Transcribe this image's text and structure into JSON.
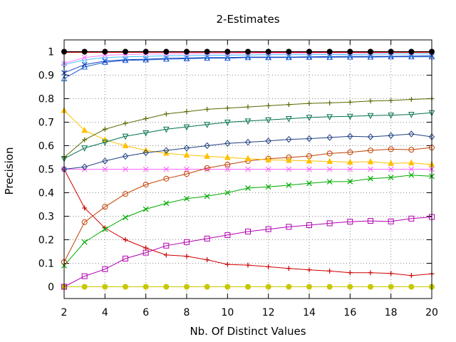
{
  "chart_data": {
    "type": "line",
    "title": "2-Estimates",
    "xlabel": "Nb. Of Distinct Values",
    "ylabel": "Precision",
    "xlim": [
      2,
      20
    ],
    "ylim": [
      -0.05,
      1.05
    ],
    "xticks": [
      "2",
      "4",
      "6",
      "8",
      "10",
      "12",
      "14",
      "16",
      "18",
      "20"
    ],
    "yticks": [
      "0",
      "0.1",
      "0.2",
      "0.3",
      "0.4",
      "0.5",
      "0.6",
      "0.7",
      "0.8",
      "0.9",
      "1"
    ],
    "grid": "dotted",
    "legend": "none",
    "x": [
      2,
      3,
      4,
      5,
      6,
      7,
      8,
      9,
      10,
      11,
      12,
      13,
      14,
      15,
      16,
      17,
      18,
      19,
      20
    ],
    "series": [
      {
        "color": "#c8c800",
        "marker": "filled-circle",
        "values": [
          0,
          0,
          0,
          0,
          0,
          0,
          0,
          0,
          0,
          0,
          0,
          0,
          0,
          0,
          0,
          0,
          0,
          0,
          0
        ]
      },
      {
        "color": "#b000b0",
        "marker": "open-square",
        "values": [
          0,
          0.045,
          0.075,
          0.12,
          0.145,
          0.175,
          0.19,
          0.205,
          0.22,
          0.235,
          0.245,
          0.255,
          0.262,
          0.27,
          0.277,
          0.28,
          0.278,
          0.29,
          0.297
        ]
      },
      {
        "color": "#cc0000",
        "marker": "plus",
        "values": [
          0.5,
          0.335,
          0.25,
          0.2,
          0.165,
          0.135,
          0.13,
          0.115,
          0.095,
          0.092,
          0.085,
          0.078,
          0.072,
          0.067,
          0.06,
          0.06,
          0.057,
          0.048,
          0.055
        ]
      },
      {
        "color": "#00aa00",
        "marker": "cross",
        "values": [
          0.09,
          0.19,
          0.245,
          0.295,
          0.33,
          0.355,
          0.375,
          0.385,
          0.4,
          0.42,
          0.425,
          0.432,
          0.44,
          0.447,
          0.448,
          0.46,
          0.465,
          0.475,
          0.47
        ]
      },
      {
        "color": "#ff66ff",
        "marker": "cross",
        "values": [
          0.5,
          0.5,
          0.5,
          0.5,
          0.5,
          0.5,
          0.5,
          0.5,
          0.5,
          0.5,
          0.5,
          0.5,
          0.5,
          0.5,
          0.5,
          0.5,
          0.5,
          0.5,
          0.5
        ]
      },
      {
        "color": "#c04000",
        "marker": "open-circle",
        "values": [
          0.105,
          0.275,
          0.34,
          0.395,
          0.435,
          0.46,
          0.48,
          0.505,
          0.52,
          0.535,
          0.545,
          0.55,
          0.556,
          0.567,
          0.572,
          0.58,
          0.585,
          0.583,
          0.592
        ]
      },
      {
        "color": "#ffc000",
        "marker": "filled-triangle",
        "values": [
          0.75,
          0.665,
          0.625,
          0.6,
          0.58,
          0.568,
          0.56,
          0.555,
          0.55,
          0.545,
          0.54,
          0.538,
          0.535,
          0.533,
          0.53,
          0.532,
          0.525,
          0.527,
          0.52
        ]
      },
      {
        "color": "#204080",
        "marker": "open-diamond",
        "values": [
          0.5,
          0.51,
          0.535,
          0.555,
          0.57,
          0.58,
          0.59,
          0.6,
          0.61,
          0.615,
          0.62,
          0.627,
          0.63,
          0.635,
          0.64,
          0.638,
          0.643,
          0.65,
          0.638
        ]
      },
      {
        "color": "#007050",
        "marker": "open-triangle-down",
        "values": [
          0.545,
          0.59,
          0.615,
          0.64,
          0.655,
          0.67,
          0.68,
          0.69,
          0.7,
          0.705,
          0.71,
          0.715,
          0.72,
          0.723,
          0.725,
          0.728,
          0.73,
          0.733,
          0.74
        ]
      },
      {
        "color": "#556b00",
        "marker": "plus",
        "values": [
          0.55,
          0.625,
          0.67,
          0.695,
          0.715,
          0.735,
          0.745,
          0.755,
          0.76,
          0.765,
          0.77,
          0.775,
          0.78,
          0.782,
          0.785,
          0.79,
          0.792,
          0.797,
          0.8
        ]
      },
      {
        "color": "#2060d0",
        "marker": "open-triangle",
        "values": [
          0.885,
          0.935,
          0.955,
          0.963,
          0.965,
          0.968,
          0.97,
          0.972,
          0.972,
          0.975,
          0.975,
          0.975,
          0.976,
          0.976,
          0.977,
          0.977,
          0.978,
          0.978,
          0.978
        ]
      },
      {
        "color": "#1040c0",
        "marker": "cross",
        "values": [
          0.91,
          0.945,
          0.96,
          0.966,
          0.968,
          0.972,
          0.973,
          0.975,
          0.975,
          0.977,
          0.977,
          0.977,
          0.978,
          0.979,
          0.98,
          0.98,
          0.98,
          0.981,
          0.982
        ]
      },
      {
        "color": "#40c0ff",
        "marker": "open-diamond",
        "values": [
          0.945,
          0.965,
          0.975,
          0.978,
          0.98,
          0.982,
          0.983,
          0.985,
          0.985,
          0.986,
          0.987,
          0.987,
          0.987,
          0.988,
          0.988,
          0.989,
          0.99,
          0.99,
          0.99
        ]
      },
      {
        "color": "#ff80ff",
        "marker": "cross",
        "values": [
          0.95,
          0.975,
          0.985,
          0.988,
          0.99,
          0.99,
          0.991,
          0.992,
          0.992,
          0.993,
          0.994,
          0.994,
          0.994,
          0.995,
          0.995,
          0.995,
          0.996,
          0.996,
          0.996
        ]
      },
      {
        "color": "#cc0000",
        "marker": "plus",
        "values": [
          0.997,
          0.997,
          0.997,
          0.997,
          0.997,
          0.997,
          0.997,
          0.997,
          0.997,
          0.997,
          0.997,
          0.997,
          0.997,
          0.997,
          0.997,
          0.997,
          0.997,
          0.997,
          0.997
        ]
      },
      {
        "color": "#000000",
        "marker": "filled-circle",
        "values": [
          1,
          1,
          1,
          1,
          1,
          1,
          1,
          1,
          1,
          1,
          1,
          1,
          1,
          1,
          1,
          1,
          1,
          1,
          1
        ]
      }
    ]
  }
}
